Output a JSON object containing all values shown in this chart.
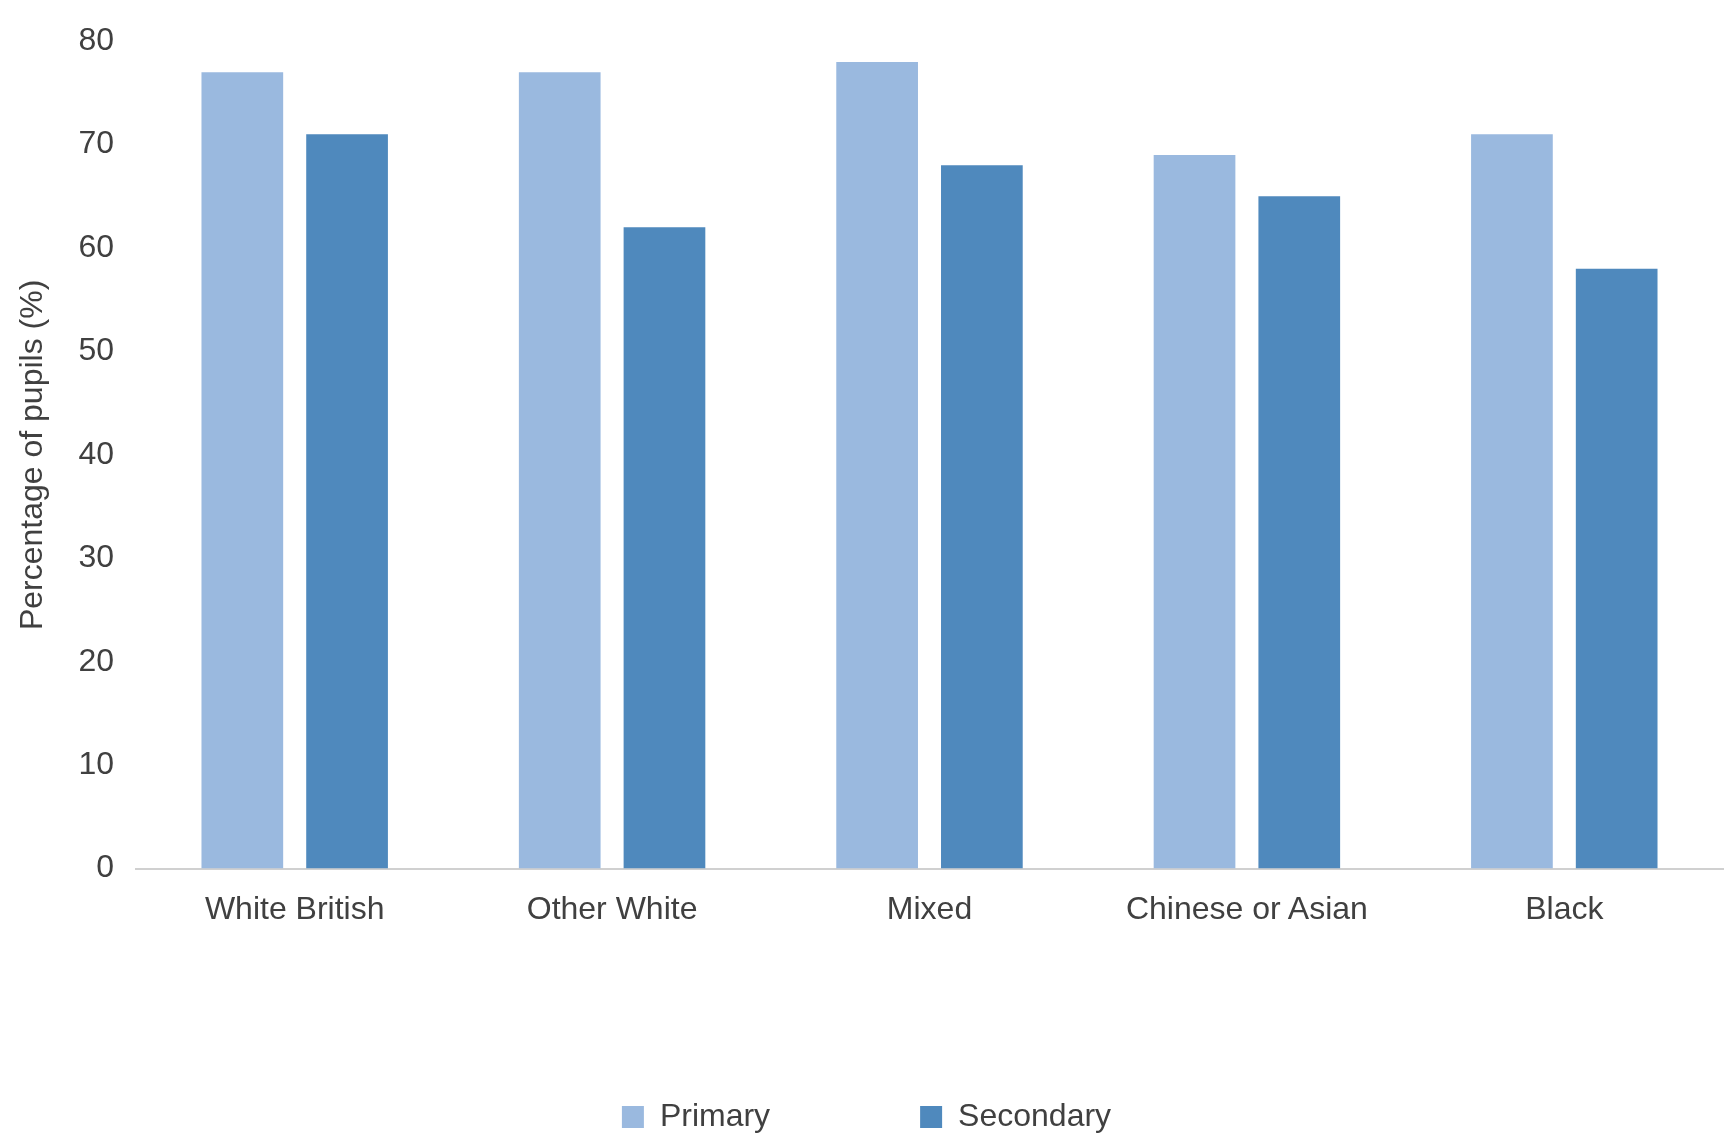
{
  "chart_data": {
    "type": "bar",
    "ylabel": "Percentage of pupils (%)",
    "categories": [
      "White British",
      "Other White",
      "Mixed",
      "Chinese or Asian",
      "Black"
    ],
    "series": [
      {
        "name": "Primary",
        "color": "#9ab9df",
        "values": [
          77,
          77,
          78,
          69,
          71
        ]
      },
      {
        "name": "Secondary",
        "color": "#4f89bd",
        "values": [
          71,
          62,
          68,
          65,
          58
        ]
      }
    ],
    "ylim": [
      0,
      80
    ],
    "yticks": [
      0,
      10,
      20,
      30,
      40,
      50,
      60,
      70,
      80
    ],
    "grid": false,
    "legend": "bottom"
  }
}
